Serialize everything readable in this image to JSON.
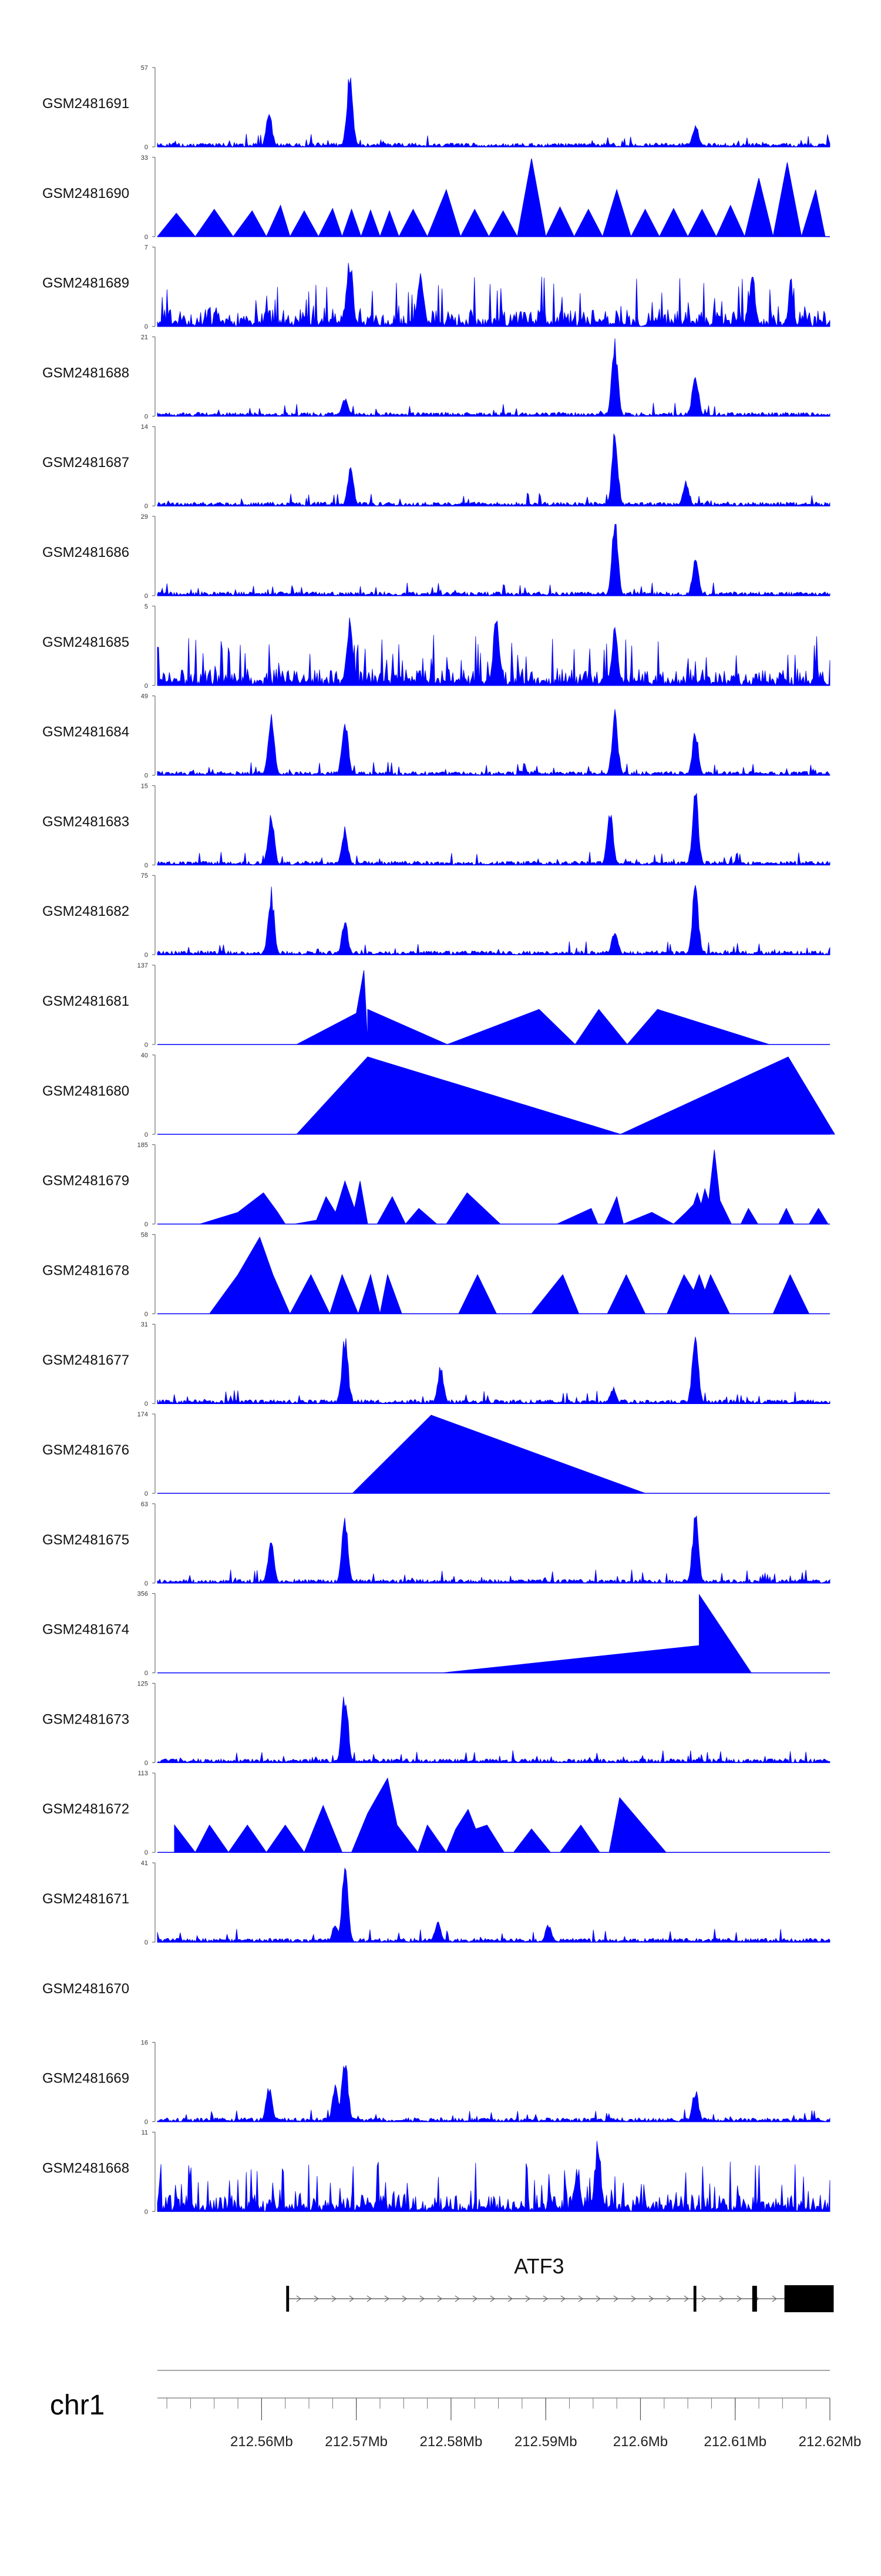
{
  "chart_data": {
    "type": "area",
    "title": "",
    "xlabel": "",
    "ylabel": "",
    "chromosome": "chr1",
    "xlim": [
      212.549,
      212.62
    ],
    "xticks": [
      212.55,
      212.555,
      212.56,
      212.565,
      212.57,
      212.575,
      212.58,
      212.585,
      212.59,
      212.595,
      212.6,
      212.605,
      212.61,
      212.615,
      212.62
    ],
    "xtick_labels": [
      {
        "value": 212.56,
        "label": "212.56Mb"
      },
      {
        "value": 212.57,
        "label": "212.57Mb"
      },
      {
        "value": 212.58,
        "label": "212.58Mb"
      },
      {
        "value": 212.59,
        "label": "212.59Mb"
      },
      {
        "value": 212.6,
        "label": "212.6Mb"
      },
      {
        "value": 212.61,
        "label": "212.61Mb"
      },
      {
        "value": 212.62,
        "label": "212.62Mb"
      }
    ],
    "gene": {
      "name": "ATF3",
      "start": 212.5627,
      "end": 212.6204,
      "exons": [
        [
          212.5626,
          212.5629
        ],
        [
          212.6056,
          212.6059
        ],
        [
          212.6118,
          212.6123
        ],
        [
          212.6152,
          212.6204
        ]
      ]
    },
    "series": [
      {
        "name": "GSM2481691",
        "ymax": "57",
        "ymin": "0",
        "style": "dense",
        "peaks": [
          [
            212.5608,
            0.45
          ],
          [
            212.5693,
            1.0
          ],
          [
            212.6058,
            0.32
          ]
        ],
        "points": []
      },
      {
        "name": "GSM2481690",
        "ymax": "33",
        "ymin": "0",
        "style": "sparse",
        "points": [
          [
            212.549,
            0.0
          ],
          [
            212.551,
            0.3
          ],
          [
            212.553,
            0.0
          ],
          [
            212.555,
            0.35
          ],
          [
            212.557,
            0.0
          ],
          [
            212.559,
            0.33
          ],
          [
            212.5605,
            0.0
          ],
          [
            212.562,
            0.4
          ],
          [
            212.563,
            0.0
          ],
          [
            212.5645,
            0.33
          ],
          [
            212.566,
            0.0
          ],
          [
            212.5675,
            0.36
          ],
          [
            212.5685,
            0.0
          ],
          [
            212.5695,
            0.35
          ],
          [
            212.5705,
            0.0
          ],
          [
            212.5715,
            0.34
          ],
          [
            212.5725,
            0.0
          ],
          [
            212.5735,
            0.33
          ],
          [
            212.5745,
            0.0
          ],
          [
            212.576,
            0.35
          ],
          [
            212.5775,
            0.0
          ],
          [
            212.5795,
            0.6
          ],
          [
            212.581,
            0.0
          ],
          [
            212.5825,
            0.35
          ],
          [
            212.584,
            0.0
          ],
          [
            212.5855,
            0.33
          ],
          [
            212.587,
            0.0
          ],
          [
            212.5885,
            1.0
          ],
          [
            212.59,
            0.0
          ],
          [
            212.5915,
            0.38
          ],
          [
            212.593,
            0.0
          ],
          [
            212.5945,
            0.35
          ],
          [
            212.596,
            0.0
          ],
          [
            212.5975,
            0.6
          ],
          [
            212.599,
            0.0
          ],
          [
            212.6005,
            0.35
          ],
          [
            212.602,
            0.0
          ],
          [
            212.6035,
            0.36
          ],
          [
            212.605,
            0.0
          ],
          [
            212.6065,
            0.35
          ],
          [
            212.608,
            0.0
          ],
          [
            212.6095,
            0.4
          ],
          [
            212.611,
            0.0
          ],
          [
            212.6125,
            0.75
          ],
          [
            212.614,
            0.0
          ],
          [
            212.6155,
            0.95
          ],
          [
            212.617,
            0.0
          ],
          [
            212.6185,
            0.6
          ],
          [
            212.6195,
            0.0
          ]
        ]
      },
      {
        "name": "GSM2481689",
        "ymax": "7",
        "ymin": "0",
        "style": "noisy",
        "peaks": [
          [
            212.5693,
            0.95
          ],
          [
            212.5768,
            0.75
          ],
          [
            212.6118,
            0.7
          ]
        ],
        "points": []
      },
      {
        "name": "GSM2481688",
        "ymax": "21",
        "ymin": "0",
        "style": "dense",
        "peaks": [
          [
            212.5688,
            0.25
          ],
          [
            212.5973,
            1.0
          ],
          [
            212.6058,
            0.65
          ]
        ],
        "points": []
      },
      {
        "name": "GSM2481687",
        "ymax": "14",
        "ymin": "0",
        "style": "dense",
        "peaks": [
          [
            212.5694,
            0.5
          ],
          [
            212.5973,
            1.0
          ],
          [
            212.6048,
            0.35
          ]
        ],
        "points": []
      },
      {
        "name": "GSM2481686",
        "ymax": "29",
        "ymin": "0",
        "style": "dense",
        "peaks": [
          [
            212.5973,
            1.0
          ],
          [
            212.6058,
            0.55
          ]
        ],
        "points": []
      },
      {
        "name": "GSM2481685",
        "ymax": "5",
        "ymin": "0",
        "style": "noisy",
        "peaks": [
          [
            212.5693,
            0.9
          ],
          [
            212.5848,
            1.0
          ],
          [
            212.5973,
            0.8
          ]
        ],
        "points": []
      },
      {
        "name": "GSM2481684",
        "ymax": "49",
        "ymin": "0",
        "style": "dense",
        "peaks": [
          [
            212.561,
            0.9
          ],
          [
            212.5688,
            0.85
          ],
          [
            212.5973,
            0.85
          ],
          [
            212.6058,
            0.6
          ]
        ],
        "points": []
      },
      {
        "name": "GSM2481683",
        "ymax": "15",
        "ymin": "0",
        "style": "dense",
        "peaks": [
          [
            212.561,
            0.75
          ],
          [
            212.5688,
            0.5
          ],
          [
            212.5968,
            0.7
          ],
          [
            212.6058,
            1.0
          ]
        ],
        "points": []
      },
      {
        "name": "GSM2481682",
        "ymax": "75",
        "ymin": "0",
        "style": "dense",
        "peaks": [
          [
            212.561,
            0.9
          ],
          [
            212.5688,
            0.45
          ],
          [
            212.5973,
            0.35
          ],
          [
            212.6058,
            0.95
          ]
        ],
        "points": []
      },
      {
        "name": "GSM2481681",
        "ymax": "137",
        "ymin": "0",
        "style": "sparse",
        "points": [
          [
            212.5637,
            0.0
          ],
          [
            212.57,
            0.4
          ],
          [
            212.5708,
            0.95
          ],
          [
            212.5712,
            0.0
          ],
          [
            212.5712,
            0.45
          ],
          [
            212.5796,
            0.0
          ],
          [
            212.5893,
            0.45
          ],
          [
            212.5931,
            0.0
          ],
          [
            212.5956,
            0.45
          ],
          [
            212.5986,
            0.0
          ],
          [
            212.6018,
            0.45
          ],
          [
            212.6136,
            0.0
          ]
        ]
      },
      {
        "name": "GSM2481680",
        "ymax": "40",
        "ymin": "0",
        "style": "sparse",
        "points": [
          [
            212.5637,
            0.0
          ],
          [
            212.5712,
            0.99
          ],
          [
            212.5979,
            0.0
          ],
          [
            212.6156,
            0.99
          ],
          [
            212.6205,
            0.0
          ]
        ]
      },
      {
        "name": "GSM2481679",
        "ymax": "185",
        "ymin": "0",
        "style": "sparse",
        "points": [
          [
            212.5535,
            0.0
          ],
          [
            212.5575,
            0.15
          ],
          [
            212.5602,
            0.4
          ],
          [
            212.5617,
            0.15
          ],
          [
            212.5625,
            0.0
          ],
          [
            212.5635,
            0.0
          ],
          [
            212.5658,
            0.05
          ],
          [
            212.5668,
            0.35
          ],
          [
            212.5678,
            0.15
          ],
          [
            212.5688,
            0.55
          ],
          [
            212.5698,
            0.2
          ],
          [
            212.5704,
            0.55
          ],
          [
            212.5712,
            0.0
          ],
          [
            212.5722,
            0.0
          ],
          [
            212.5738,
            0.35
          ],
          [
            212.5752,
            0.0
          ],
          [
            212.5766,
            0.2
          ],
          [
            212.5785,
            0.0
          ],
          [
            212.5795,
            0.0
          ],
          [
            212.5817,
            0.4
          ],
          [
            212.5852,
            0.0
          ],
          [
            212.5912,
            0.0
          ],
          [
            212.5948,
            0.2
          ],
          [
            212.5955,
            0.0
          ],
          [
            212.5962,
            0.0
          ],
          [
            212.5968,
            0.15
          ],
          [
            212.5975,
            0.35
          ],
          [
            212.5982,
            0.0
          ],
          [
            212.6012,
            0.15
          ],
          [
            212.6035,
            0.0
          ],
          [
            212.6048,
            0.15
          ],
          [
            212.6056,
            0.25
          ],
          [
            212.606,
            0.4
          ],
          [
            212.6064,
            0.25
          ],
          [
            212.6068,
            0.45
          ],
          [
            212.6072,
            0.3
          ],
          [
            212.6078,
            0.95
          ],
          [
            212.6084,
            0.3
          ],
          [
            212.6096,
            0.0
          ],
          [
            212.6106,
            0.0
          ],
          [
            212.6114,
            0.2
          ],
          [
            212.6124,
            0.0
          ],
          [
            212.6146,
            0.0
          ],
          [
            212.6154,
            0.2
          ],
          [
            212.6162,
            0.0
          ],
          [
            212.6178,
            0.0
          ],
          [
            212.6188,
            0.2
          ],
          [
            212.6198,
            0.0
          ]
        ]
      },
      {
        "name": "GSM2481678",
        "ymax": "58",
        "ymin": "0",
        "style": "sparse",
        "points": [
          [
            212.5545,
            0.0
          ],
          [
            212.5575,
            0.5
          ],
          [
            212.5598,
            0.98
          ],
          [
            212.5612,
            0.5
          ],
          [
            212.563,
            0.0
          ],
          [
            212.5652,
            0.5
          ],
          [
            212.5672,
            0.0
          ],
          [
            212.5685,
            0.5
          ],
          [
            212.5702,
            0.0
          ],
          [
            212.5715,
            0.5
          ],
          [
            212.5725,
            0.0
          ],
          [
            212.5733,
            0.5
          ],
          [
            212.5748,
            0.0
          ],
          [
            212.5808,
            0.0
          ],
          [
            212.5828,
            0.5
          ],
          [
            212.5848,
            0.0
          ],
          [
            212.5885,
            0.0
          ],
          [
            212.5918,
            0.5
          ],
          [
            212.5935,
            0.0
          ],
          [
            212.5965,
            0.0
          ],
          [
            212.5985,
            0.5
          ],
          [
            212.6005,
            0.0
          ],
          [
            212.6028,
            0.0
          ],
          [
            212.6046,
            0.5
          ],
          [
            212.6056,
            0.3
          ],
          [
            212.6062,
            0.5
          ],
          [
            212.6068,
            0.3
          ],
          [
            212.6074,
            0.5
          ],
          [
            212.6094,
            0.0
          ],
          [
            212.614,
            0.0
          ],
          [
            212.6158,
            0.5
          ],
          [
            212.6178,
            0.0
          ]
        ]
      },
      {
        "name": "GSM2481677",
        "ymax": "31",
        "ymin": "0",
        "style": "dense",
        "peaks": [
          [
            212.5688,
            0.95
          ],
          [
            212.5789,
            0.5
          ],
          [
            212.5971,
            0.22
          ],
          [
            212.6058,
            0.95
          ]
        ],
        "points": []
      },
      {
        "name": "GSM2481676",
        "ymax": "174",
        "ymin": "0",
        "style": "sparse",
        "points": [
          [
            212.5696,
            0.0
          ],
          [
            212.5779,
            1.0
          ],
          [
            212.6005,
            0.0
          ]
        ]
      },
      {
        "name": "GSM2481675",
        "ymax": "63",
        "ymin": "0",
        "style": "dense",
        "peaks": [
          [
            212.561,
            0.6
          ],
          [
            212.5688,
            0.9
          ],
          [
            212.6058,
            0.95
          ]
        ],
        "points": []
      },
      {
        "name": "GSM2481674",
        "ymax": "356",
        "ymin": "0",
        "style": "sparse",
        "points": [
          [
            212.5791,
            0.0
          ],
          [
            212.6062,
            0.35
          ],
          [
            212.6062,
            1.0
          ],
          [
            212.6117,
            0.0
          ]
        ]
      },
      {
        "name": "GSM2481673",
        "ymax": "125",
        "ymin": "0",
        "style": "dense",
        "peaks": [
          [
            212.5688,
            1.0
          ]
        ],
        "points": []
      },
      {
        "name": "GSM2481672",
        "ymax": "113",
        "ymin": "0",
        "style": "sparse",
        "points": [
          [
            212.5508,
            0.35
          ],
          [
            212.553,
            0.0
          ],
          [
            212.5545,
            0.35
          ],
          [
            212.5565,
            0.0
          ],
          [
            212.5585,
            0.35
          ],
          [
            212.5605,
            0.0
          ],
          [
            212.5625,
            0.35
          ],
          [
            212.5645,
            0.0
          ],
          [
            212.5665,
            0.6
          ],
          [
            212.5685,
            0.0
          ],
          [
            212.5695,
            0.0
          ],
          [
            212.5712,
            0.5
          ],
          [
            212.5733,
            0.95
          ],
          [
            212.5743,
            0.35
          ],
          [
            212.5765,
            0.0
          ],
          [
            212.5775,
            0.35
          ],
          [
            212.5795,
            0.0
          ],
          [
            212.5805,
            0.3
          ],
          [
            212.5818,
            0.55
          ],
          [
            212.5826,
            0.3
          ],
          [
            212.5838,
            0.35
          ],
          [
            212.5856,
            0.0
          ],
          [
            212.5866,
            0.0
          ],
          [
            212.5885,
            0.3
          ],
          [
            212.5905,
            0.0
          ],
          [
            212.5915,
            0.0
          ],
          [
            212.5937,
            0.35
          ],
          [
            212.5957,
            0.0
          ],
          [
            212.5967,
            0.0
          ],
          [
            212.5978,
            0.7
          ],
          [
            212.6027,
            0.0
          ]
        ]
      },
      {
        "name": "GSM2481671",
        "ymax": "41",
        "ymin": "0",
        "style": "dense",
        "peaks": [
          [
            212.5688,
            1.0
          ],
          [
            212.5678,
            0.25
          ],
          [
            212.5786,
            0.3
          ],
          [
            212.5903,
            0.25
          ]
        ],
        "points": []
      },
      {
        "name": "GSM2481670",
        "ymax": "",
        "ymin": "",
        "style": "empty",
        "points": []
      },
      {
        "name": "GSM2481669",
        "ymax": "16",
        "ymin": "0",
        "style": "dense",
        "peaks": [
          [
            212.5608,
            0.5
          ],
          [
            212.5688,
            0.95
          ],
          [
            212.5678,
            0.55
          ],
          [
            212.6058,
            0.45
          ]
        ],
        "points": []
      },
      {
        "name": "GSM2481668",
        "ymax": "11",
        "ymin": "0",
        "style": "noisy",
        "peaks": [
          [
            212.5955,
            0.95
          ],
          [
            212.5933,
            0.6
          ]
        ],
        "points": []
      }
    ]
  },
  "colors": {
    "signal": "#0000ff",
    "axis": "#555555",
    "gene": "#000000"
  }
}
